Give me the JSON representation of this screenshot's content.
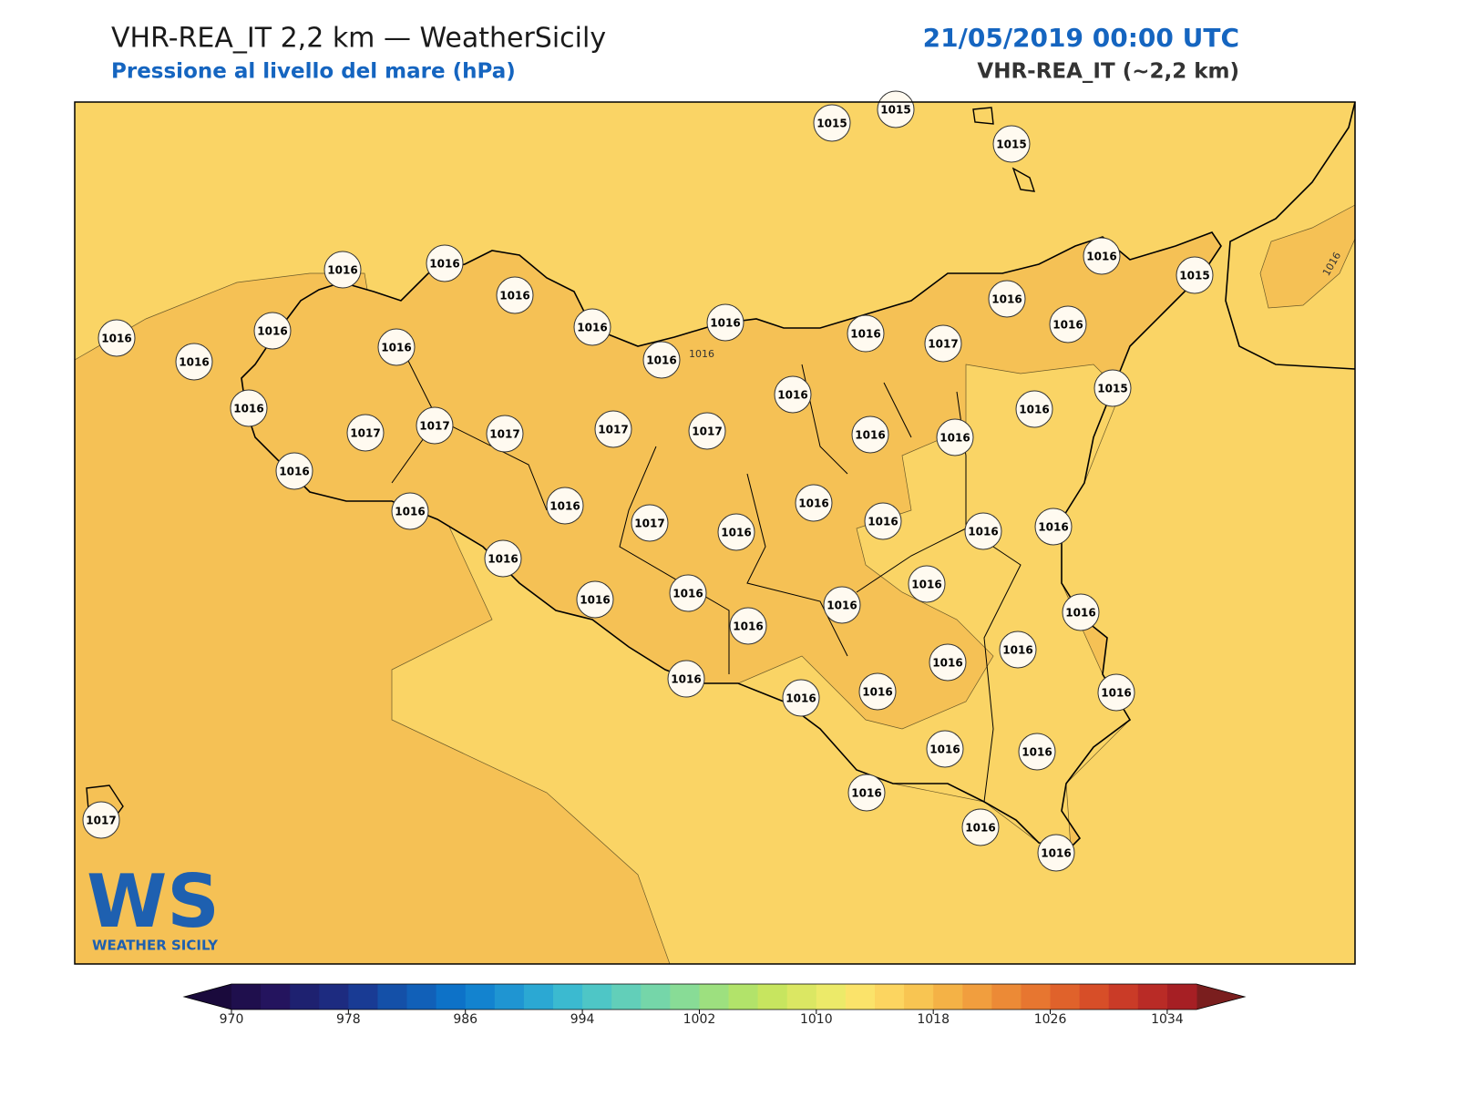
{
  "header": {
    "title": "VHR-REA_IT 2,2 km — WeatherSicily",
    "subtitle": "Pressione al livello del mare (hPa)",
    "date": "21/05/2019 00:00 UTC",
    "model": "VHR-REA_IT (~2,2 km)"
  },
  "map": {
    "stations": [
      1015,
      1015,
      1015,
      1016,
      1016,
      1016,
      1016,
      1016,
      1016,
      1016,
      1016,
      1016,
      1016,
      1016,
      1017,
      1016,
      1016,
      1016,
      1015,
      1015,
      1016,
      1016,
      1017,
      1017,
      1017,
      1017,
      1017,
      1016,
      1016,
      1016,
      1016,
      1016,
      1016,
      1017,
      1016,
      1016,
      1016,
      1016,
      1016,
      1016,
      1016,
      1016,
      1016,
      1016,
      1016,
      1016,
      1016,
      1016,
      1016,
      1016,
      1016,
      1016,
      1016,
      1016,
      1016,
      1016,
      1016,
      1017
    ],
    "contour_labels": [
      "1016",
      "1016"
    ],
    "logo": {
      "mark": "WS",
      "text": "WEATHER SICILY"
    }
  },
  "colorbar": {
    "range": [
      970,
      1036
    ],
    "step": 2,
    "colors": [
      "#1f0f4d",
      "#24145e",
      "#1e2170",
      "#1d2b80",
      "#193b94",
      "#1450a8",
      "#1160b8",
      "#0d72c8",
      "#1383cf",
      "#1f95d2",
      "#2ba8d3",
      "#3bbad0",
      "#4ec6c6",
      "#62cfb9",
      "#75d6a9",
      "#88dc96",
      "#9de07f",
      "#b2e36a",
      "#c7e55f",
      "#dbe763",
      "#ecea69",
      "#fbe36a",
      "#fcd560",
      "#f8c552",
      "#f4b246",
      "#f19e3e",
      "#ec8a36",
      "#e77630",
      "#e0622b",
      "#d74e28",
      "#ca3b27",
      "#b92b26",
      "#a61f24"
    ],
    "under_color": "#1a0a3c",
    "over_color": "#7a1e1e",
    "ticks": [
      970,
      978,
      986,
      994,
      1002,
      1010,
      1018,
      1026,
      1034
    ]
  }
}
